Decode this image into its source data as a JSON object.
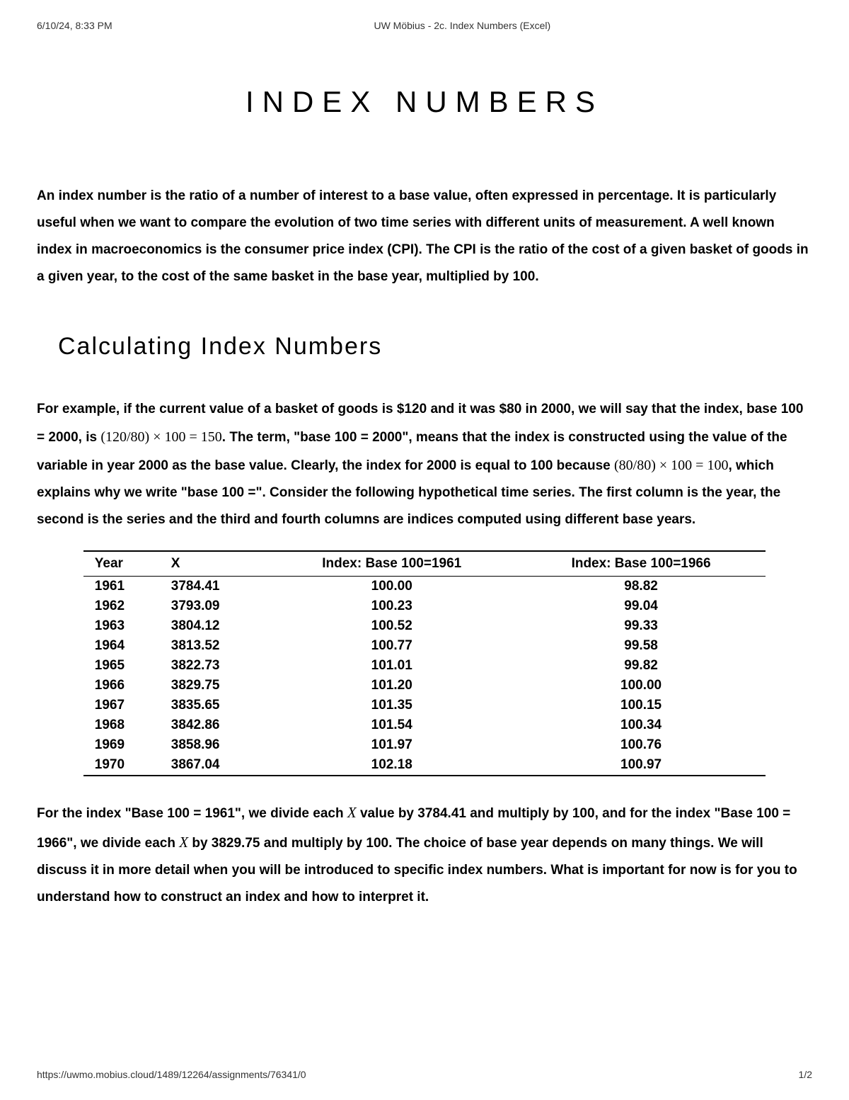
{
  "header": {
    "timestamp": "6/10/24, 8:33 PM",
    "docTitle": "UW Möbius - 2c. Index Numbers (Excel)"
  },
  "title": "INDEX NUMBERS",
  "intro": "An index number is the ratio of a number of interest to a base value, often expressed in percentage. It is particularly useful when we want to compare the evolution of two time series with different units of measurement. A well known index in macroeconomics is the consumer price index (CPI). The CPI is the ratio of the cost of a given basket of goods in a given year, to the cost of the same basket in the base year, multiplied by 100.",
  "sectionTitle": "Calculating Index Numbers",
  "para1_a": "For example, if the current value of a basket of goods is $120 and it was $80 in 2000, we will say that the index, base 100 = 2000, is ",
  "para1_math1": "(120/80) × 100 = 150",
  "para1_b": ". The term, \"base 100 = 2000\", means that the index is constructed using the value of the variable in year 2000 as the base value. Clearly, the index for 2000 is equal to 100 because ",
  "para1_math2": "(80/80) × 100 = 100",
  "para1_c": ", which explains why we write \"base 100 =\". Consider the following hypothetical time series. The first column is the year, the second is the series and the third and fourth columns are indices computed using different base years.",
  "table": {
    "columns": [
      "Year",
      "X",
      "Index: Base 100=1961",
      "Index: Base 100=1966"
    ],
    "rows": [
      [
        "1961",
        "3784.41",
        "100.00",
        "98.82"
      ],
      [
        "1962",
        "3793.09",
        "100.23",
        "99.04"
      ],
      [
        "1963",
        "3804.12",
        "100.52",
        "99.33"
      ],
      [
        "1964",
        "3813.52",
        "100.77",
        "99.58"
      ],
      [
        "1965",
        "3822.73",
        "101.01",
        "99.82"
      ],
      [
        "1966",
        "3829.75",
        "101.20",
        "100.00"
      ],
      [
        "1967",
        "3835.65",
        "101.35",
        "100.15"
      ],
      [
        "1968",
        "3842.86",
        "101.54",
        "100.34"
      ],
      [
        "1969",
        "3858.96",
        "101.97",
        "100.76"
      ],
      [
        "1970",
        "3867.04",
        "102.18",
        "100.97"
      ]
    ]
  },
  "para2_a": "For the index \"Base 100 = 1961\", we divide each ",
  "para2_x1": "X",
  "para2_b": " value by 3784.41 and multiply by 100, and for the index \"Base 100 = 1966\", we divide each ",
  "para2_x2": "X",
  "para2_c": " by 3829.75 and multiply by 100. The choice of base year depends on many things. We will discuss it in more detail when you will be introduced to specific index numbers. What is important for now is for you to understand how to construct an index and how to interpret it.",
  "footer": {
    "url": "https://uwmo.mobius.cloud/1489/12264/assignments/76341/0",
    "page": "1/2"
  }
}
